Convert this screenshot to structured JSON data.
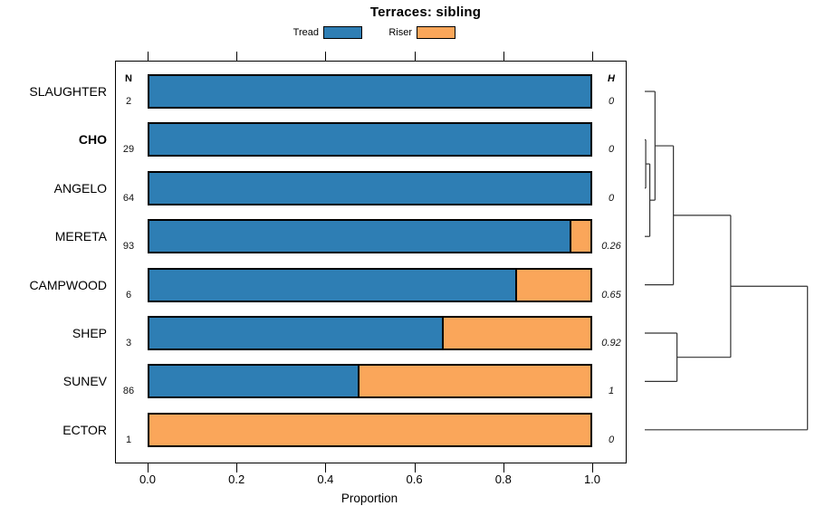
{
  "title": "Terraces: sibling",
  "legend": [
    {
      "label": "Tread",
      "color": "#2E7EB4"
    },
    {
      "label": "Riser",
      "color": "#FAA65A"
    }
  ],
  "columns": {
    "n_header": "N",
    "h_header": "H"
  },
  "xlabel": "Proportion",
  "chart_data": {
    "type": "bar",
    "orientation": "horizontal",
    "stacked": true,
    "title": "Terraces: sibling",
    "xlabel": "Proportion",
    "xlim": [
      0,
      1
    ],
    "xticks": [
      "0.0",
      "0.2",
      "0.4",
      "0.6",
      "0.8",
      "1.0"
    ],
    "grid": false,
    "legend_position": "top",
    "categories": [
      "SLAUGHTER",
      "CHO",
      "ANGELO",
      "MERETA",
      "CAMPWOOD",
      "SHEP",
      "SUNEV",
      "ECTOR"
    ],
    "bold_categories": [
      "CHO"
    ],
    "series": [
      {
        "name": "Tread",
        "color": "#2E7EB4",
        "values": [
          1,
          1,
          1,
          0.957,
          0.833,
          0.667,
          0.477,
          0
        ]
      },
      {
        "name": "Riser",
        "color": "#FAA65A",
        "values": [
          0,
          0,
          0,
          0.043,
          0.167,
          0.333,
          0.523,
          1
        ]
      }
    ],
    "N": [
      2,
      29,
      64,
      93,
      6,
      3,
      86,
      1
    ],
    "H": [
      "0",
      "0",
      "0",
      "0.26",
      "0.65",
      "0.92",
      "1",
      "0"
    ],
    "dendrogram": {
      "position": "right",
      "line_color": "#333333",
      "merges": [
        {
          "id": "A",
          "children": [
            "CHO",
            "ANGELO"
          ],
          "height": 0.006
        },
        {
          "id": "B",
          "children": [
            "A",
            "MERETA"
          ],
          "height": 0.031
        },
        {
          "id": "C",
          "children": [
            "SLAUGHTER",
            "B"
          ],
          "height": 0.063
        },
        {
          "id": "D",
          "children": [
            "C",
            "CAMPWOOD"
          ],
          "height": 0.176
        },
        {
          "id": "E",
          "children": [
            "SHEP",
            "SUNEV"
          ],
          "height": 0.198
        },
        {
          "id": "F",
          "children": [
            "D",
            "E"
          ],
          "height": 0.528
        },
        {
          "id": "G",
          "children": [
            "F",
            "ECTOR"
          ],
          "height": 1.0
        }
      ]
    }
  }
}
